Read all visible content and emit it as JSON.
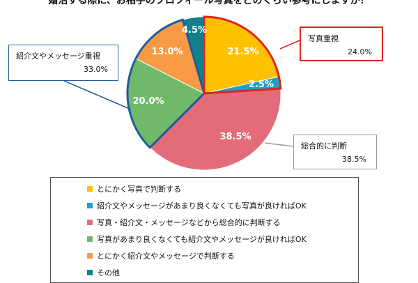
{
  "chart_data": {
    "type": "pie",
    "title": "婚活する際に、お相手のプロフィール写真をどのくらい参考にしますか？",
    "slices": [
      {
        "label": "とにかく写真で判断する",
        "value": 21.5,
        "display": "21.5%",
        "color": "#ffc000"
      },
      {
        "label": "紹介文やメッセージがあまり良くなくても写真が良ければOK",
        "value": 2.5,
        "display": "2.5%",
        "color": "#1f9fc8"
      },
      {
        "label": "写真・紹介文・メッセージなどから総合的に判断する",
        "value": 38.5,
        "display": "38.5%",
        "color": "#e46c7a"
      },
      {
        "label": "写真があまり良くなくても紹介文やメッセージが良ければOK",
        "value": 20.0,
        "display": "20.0%",
        "color": "#70b96a"
      },
      {
        "label": "とにかく紹介文やメッセージで判断する",
        "value": 13.0,
        "display": "13.0%",
        "color": "#f79a43"
      },
      {
        "label": "その他",
        "value": 4.5,
        "display": "4.5%",
        "color": "#11808a"
      }
    ],
    "groups": [
      {
        "name": "写真重視",
        "value": "24.0%",
        "color": "#e0251b"
      },
      {
        "name": "紹介文やメッセージ重視",
        "value": "33.0%",
        "color": "#1f5b9e"
      },
      {
        "name": "総合的に判断",
        "value": "38.5%",
        "color": "#9a9a9a"
      }
    ],
    "legend_placement": "bottom"
  }
}
